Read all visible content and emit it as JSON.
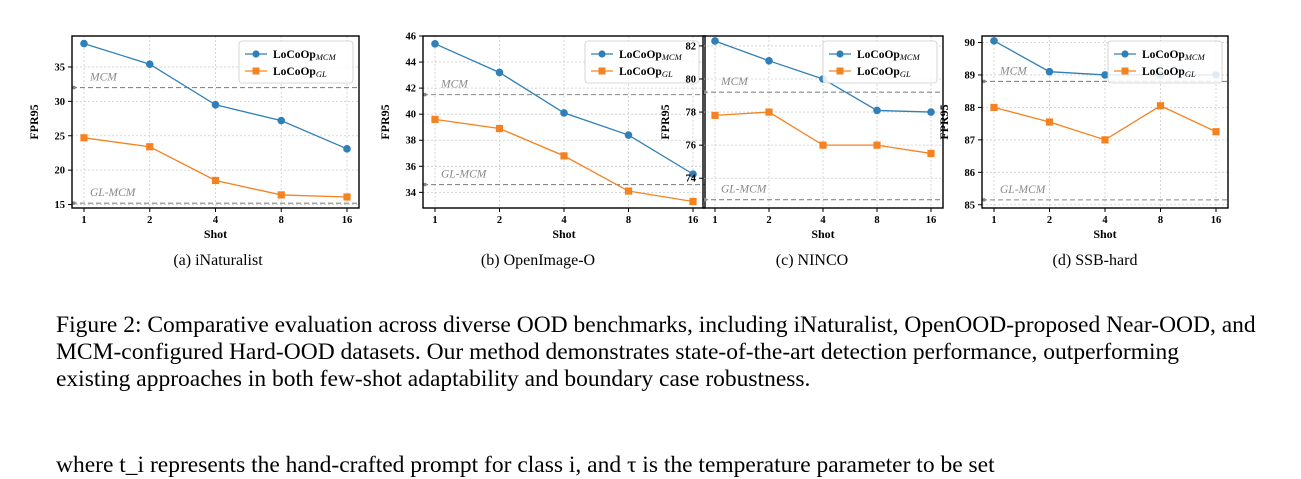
{
  "figure": {
    "caption": "Figure 2: Comparative evaluation across diverse OOD benchmarks, including iNaturalist, OpenOOD-proposed Near-OOD, and MCM-configured Hard-OOD datasets. Our method demonstrates state-of-the-art detection performance, outperforming existing approaches in both few-shot adaptability and boundary case robustness.",
    "body_text": "where t_i represents the hand-crafted prompt for class i, and τ is the temperature parameter to be set"
  },
  "colors": {
    "mcm_series": "#2f7fb8",
    "gl_series": "#f58220",
    "reference_line": "#888888",
    "grid": "#cccccc"
  },
  "chart_data": [
    {
      "type": "line",
      "caption": "(a) iNaturalist",
      "xlabel": "Shot",
      "ylabel": "FPR95",
      "categories": [
        "1",
        "2",
        "4",
        "8",
        "16"
      ],
      "ylim": [
        14.5,
        39.5
      ],
      "yticks": [
        15,
        20,
        25,
        30,
        35
      ],
      "grid": true,
      "legend_position": "top-right",
      "series": [
        {
          "name": "LoCoOp",
          "subscript": "MCM",
          "marker": "circle",
          "values": [
            38.4,
            35.4,
            29.5,
            27.2,
            23.1
          ]
        },
        {
          "name": "LoCoOp",
          "subscript": "GL",
          "marker": "square",
          "values": [
            24.7,
            23.4,
            18.5,
            16.4,
            16.1
          ]
        }
      ],
      "references": [
        {
          "label": "MCM",
          "value": 32.0
        },
        {
          "label": "GL-MCM",
          "value": 15.2
        }
      ]
    },
    {
      "type": "line",
      "caption": "(b) OpenImage-O",
      "xlabel": "Shot",
      "ylabel": "FPR95",
      "categories": [
        "1",
        "2",
        "4",
        "8",
        "16"
      ],
      "ylim": [
        32.8,
        46.0
      ],
      "yticks": [
        34,
        36,
        38,
        40,
        42,
        44,
        46
      ],
      "grid": true,
      "legend_position": "top-right",
      "series": [
        {
          "name": "LoCoOp",
          "subscript": "MCM",
          "marker": "circle",
          "values": [
            45.4,
            43.2,
            40.1,
            38.4,
            35.4
          ]
        },
        {
          "name": "LoCoOp",
          "subscript": "GL",
          "marker": "square",
          "values": [
            39.6,
            38.9,
            36.8,
            34.1,
            33.3
          ]
        }
      ],
      "references": [
        {
          "label": "MCM",
          "value": 41.5
        },
        {
          "label": "GL-MCM",
          "value": 34.6
        }
      ]
    },
    {
      "type": "line",
      "caption": "(c) NINCO",
      "xlabel": "Shot",
      "ylabel": "FPR95",
      "categories": [
        "1",
        "2",
        "4",
        "8",
        "16"
      ],
      "ylim": [
        72.2,
        82.6
      ],
      "yticks": [
        74,
        76,
        78,
        80,
        82
      ],
      "grid": true,
      "legend_position": "top-right",
      "series": [
        {
          "name": "LoCoOp",
          "subscript": "MCM",
          "marker": "circle",
          "values": [
            82.3,
            81.1,
            80.0,
            78.1,
            78.0
          ]
        },
        {
          "name": "LoCoOp",
          "subscript": "GL",
          "marker": "square",
          "values": [
            77.8,
            78.0,
            76.0,
            76.0,
            75.5
          ]
        }
      ],
      "references": [
        {
          "label": "MCM",
          "value": 79.2
        },
        {
          "label": "GL-MCM",
          "value": 72.7
        }
      ]
    },
    {
      "type": "line",
      "caption": "(d) SSB-hard",
      "xlabel": "Shot",
      "ylabel": "FPR95",
      "categories": [
        "1",
        "2",
        "4",
        "8",
        "16"
      ],
      "ylim": [
        84.9,
        90.2
      ],
      "yticks": [
        85,
        86,
        87,
        88,
        89,
        90
      ],
      "grid": true,
      "legend_position": "top-right",
      "series": [
        {
          "name": "LoCoOp",
          "subscript": "MCM",
          "marker": "circle",
          "values": [
            90.05,
            89.1,
            89.0,
            89.0,
            89.0
          ]
        },
        {
          "name": "LoCoOp",
          "subscript": "GL",
          "marker": "square",
          "values": [
            88.0,
            87.55,
            87.0,
            88.05,
            87.25
          ]
        }
      ],
      "references": [
        {
          "label": "MCM",
          "value": 88.8
        },
        {
          "label": "GL-MCM",
          "value": 85.15
        }
      ]
    }
  ]
}
